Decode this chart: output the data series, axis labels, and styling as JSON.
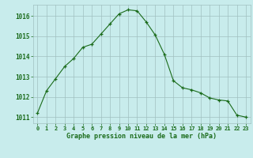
{
  "x": [
    0,
    1,
    2,
    3,
    4,
    5,
    6,
    7,
    8,
    9,
    10,
    11,
    12,
    13,
    14,
    15,
    16,
    17,
    18,
    19,
    20,
    21,
    22,
    23
  ],
  "y": [
    1011.2,
    1012.3,
    1012.9,
    1013.5,
    1013.9,
    1014.45,
    1014.6,
    1015.1,
    1015.6,
    1016.1,
    1016.3,
    1016.25,
    1015.7,
    1015.05,
    1014.1,
    1012.8,
    1012.45,
    1012.35,
    1012.2,
    1011.95,
    1011.85,
    1011.8,
    1011.1,
    1011.0
  ],
  "line_color": "#1a6b1a",
  "marker": "+",
  "marker_size": 3,
  "bg_color": "#c8ecec",
  "grid_color": "#a0c0c0",
  "xlabel": "Graphe pression niveau de la mer (hPa)",
  "xlabel_color": "#1a6b1a",
  "tick_color": "#1a6b1a",
  "ylim": [
    1010.7,
    1016.55
  ],
  "yticks": [
    1011,
    1012,
    1013,
    1014,
    1015,
    1016
  ],
  "xlim": [
    -0.5,
    23.5
  ],
  "xticks": [
    0,
    1,
    2,
    3,
    4,
    5,
    6,
    7,
    8,
    9,
    10,
    11,
    12,
    13,
    14,
    15,
    16,
    17,
    18,
    19,
    20,
    21,
    22,
    23
  ]
}
